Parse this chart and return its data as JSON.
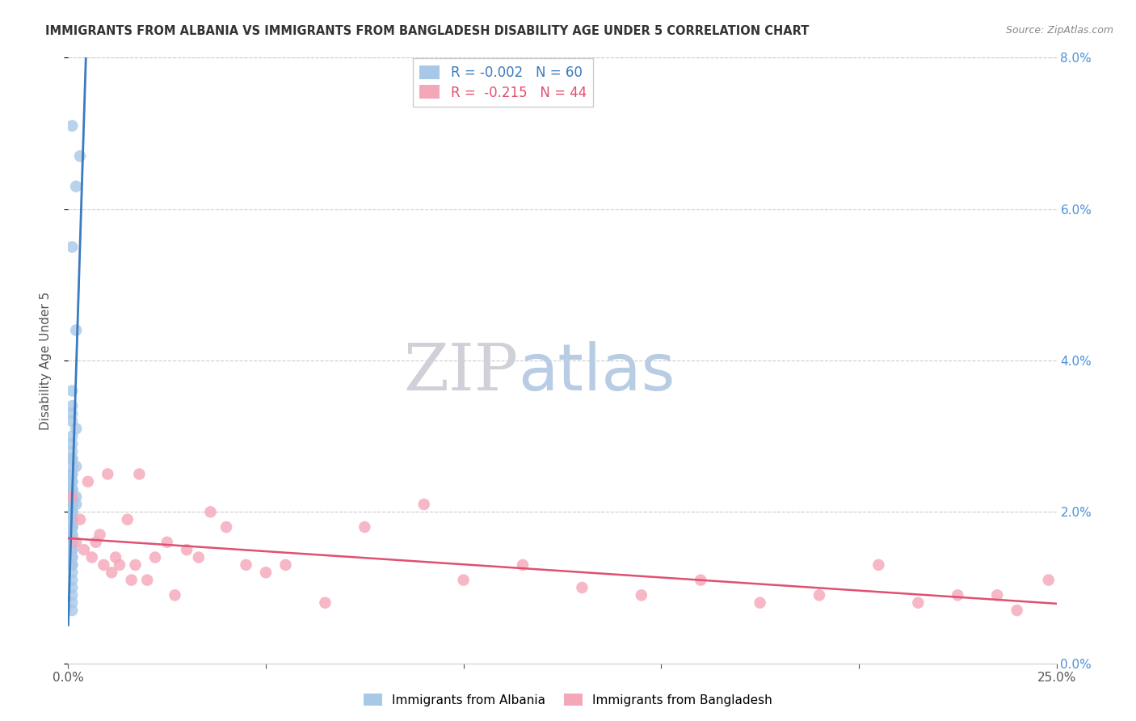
{
  "title": "IMMIGRANTS FROM ALBANIA VS IMMIGRANTS FROM BANGLADESH DISABILITY AGE UNDER 5 CORRELATION CHART",
  "source": "Source: ZipAtlas.com",
  "ylabel": "Disability Age Under 5",
  "legend_albania": "Immigrants from Albania",
  "legend_bangladesh": "Immigrants from Bangladesh",
  "R_albania": -0.002,
  "N_albania": 60,
  "R_bangladesh": -0.215,
  "N_bangladesh": 44,
  "color_albania": "#a8c8e8",
  "color_albania_line": "#3a7abf",
  "color_albania_line_dashed": "#90bfe0",
  "color_bangladesh": "#f4a7b9",
  "color_bangladesh_line": "#e05070",
  "background_color": "#ffffff",
  "xlim": [
    0.0,
    0.25
  ],
  "ylim": [
    0.0,
    0.08
  ],
  "albania_x": [
    0.001,
    0.003,
    0.002,
    0.001,
    0.002,
    0.001,
    0.001,
    0.001,
    0.001,
    0.002,
    0.001,
    0.001,
    0.001,
    0.001,
    0.001,
    0.001,
    0.002,
    0.001,
    0.001,
    0.001,
    0.001,
    0.001,
    0.001,
    0.001,
    0.002,
    0.001,
    0.001,
    0.001,
    0.001,
    0.002,
    0.001,
    0.001,
    0.001,
    0.001,
    0.001,
    0.001,
    0.001,
    0.001,
    0.001,
    0.001,
    0.001,
    0.001,
    0.001,
    0.001,
    0.001,
    0.001,
    0.001,
    0.001,
    0.001,
    0.001,
    0.001,
    0.001,
    0.001,
    0.001,
    0.001,
    0.001,
    0.001,
    0.001,
    0.001,
    0.001
  ],
  "albania_y": [
    0.071,
    0.067,
    0.063,
    0.055,
    0.044,
    0.036,
    0.034,
    0.033,
    0.032,
    0.031,
    0.03,
    0.029,
    0.028,
    0.027,
    0.027,
    0.026,
    0.026,
    0.025,
    0.025,
    0.024,
    0.024,
    0.023,
    0.023,
    0.023,
    0.022,
    0.022,
    0.022,
    0.022,
    0.021,
    0.021,
    0.021,
    0.021,
    0.02,
    0.02,
    0.02,
    0.02,
    0.02,
    0.019,
    0.019,
    0.019,
    0.018,
    0.018,
    0.018,
    0.018,
    0.017,
    0.017,
    0.016,
    0.016,
    0.015,
    0.015,
    0.014,
    0.014,
    0.013,
    0.013,
    0.012,
    0.011,
    0.01,
    0.009,
    0.008,
    0.007
  ],
  "bangladesh_x": [
    0.001,
    0.002,
    0.003,
    0.004,
    0.005,
    0.006,
    0.007,
    0.008,
    0.009,
    0.01,
    0.011,
    0.012,
    0.013,
    0.015,
    0.016,
    0.017,
    0.018,
    0.02,
    0.022,
    0.025,
    0.027,
    0.03,
    0.033,
    0.036,
    0.04,
    0.045,
    0.05,
    0.055,
    0.065,
    0.075,
    0.09,
    0.1,
    0.115,
    0.13,
    0.145,
    0.16,
    0.175,
    0.19,
    0.205,
    0.215,
    0.225,
    0.235,
    0.24,
    0.248
  ],
  "bangladesh_y": [
    0.022,
    0.016,
    0.019,
    0.015,
    0.024,
    0.014,
    0.016,
    0.017,
    0.013,
    0.025,
    0.012,
    0.014,
    0.013,
    0.019,
    0.011,
    0.013,
    0.025,
    0.011,
    0.014,
    0.016,
    0.009,
    0.015,
    0.014,
    0.02,
    0.018,
    0.013,
    0.012,
    0.013,
    0.008,
    0.018,
    0.021,
    0.011,
    0.013,
    0.01,
    0.009,
    0.011,
    0.008,
    0.009,
    0.013,
    0.008,
    0.009,
    0.009,
    0.007,
    0.011
  ],
  "albania_line_solid_end": 0.12,
  "watermark_zip_color": "#d0d0d8",
  "watermark_atlas_color": "#b8cce4"
}
